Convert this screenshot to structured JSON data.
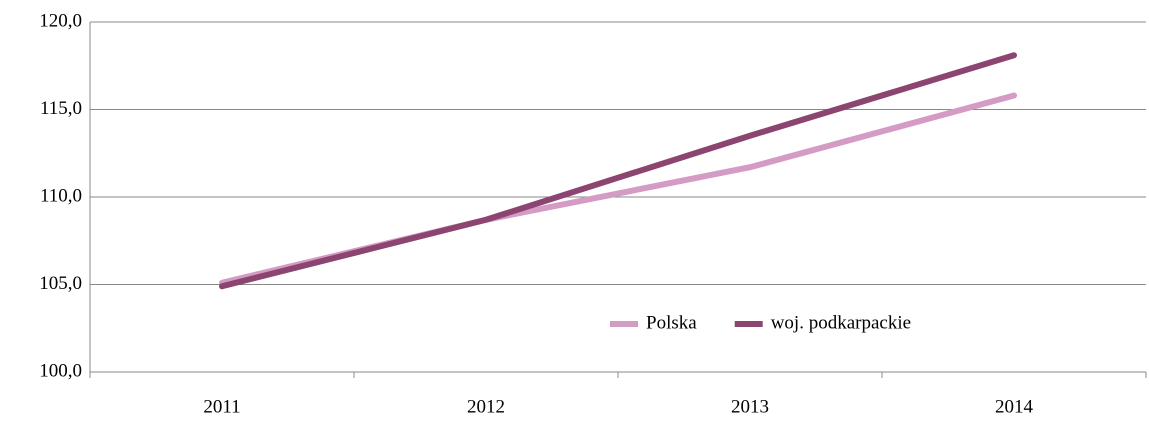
{
  "chart_data": {
    "type": "line",
    "categories": [
      "2011",
      "2012",
      "2013",
      "2014"
    ],
    "series": [
      {
        "name": "Polska",
        "color": "#d49bc4",
        "values": [
          105.1,
          108.7,
          111.7,
          115.8
        ]
      },
      {
        "name": "woj. podkarpackie",
        "color": "#8b4570",
        "values": [
          104.9,
          108.7,
          113.5,
          118.1
        ]
      }
    ],
    "ylim": [
      100,
      120
    ],
    "yticks": [
      {
        "value": 100,
        "label": "100,0"
      },
      {
        "value": 105,
        "label": "105,0"
      },
      {
        "value": 110,
        "label": "110,0"
      },
      {
        "value": 115,
        "label": "115,0"
      },
      {
        "value": 120,
        "label": "120,0"
      }
    ],
    "grid": true,
    "legend": "lower-right"
  }
}
